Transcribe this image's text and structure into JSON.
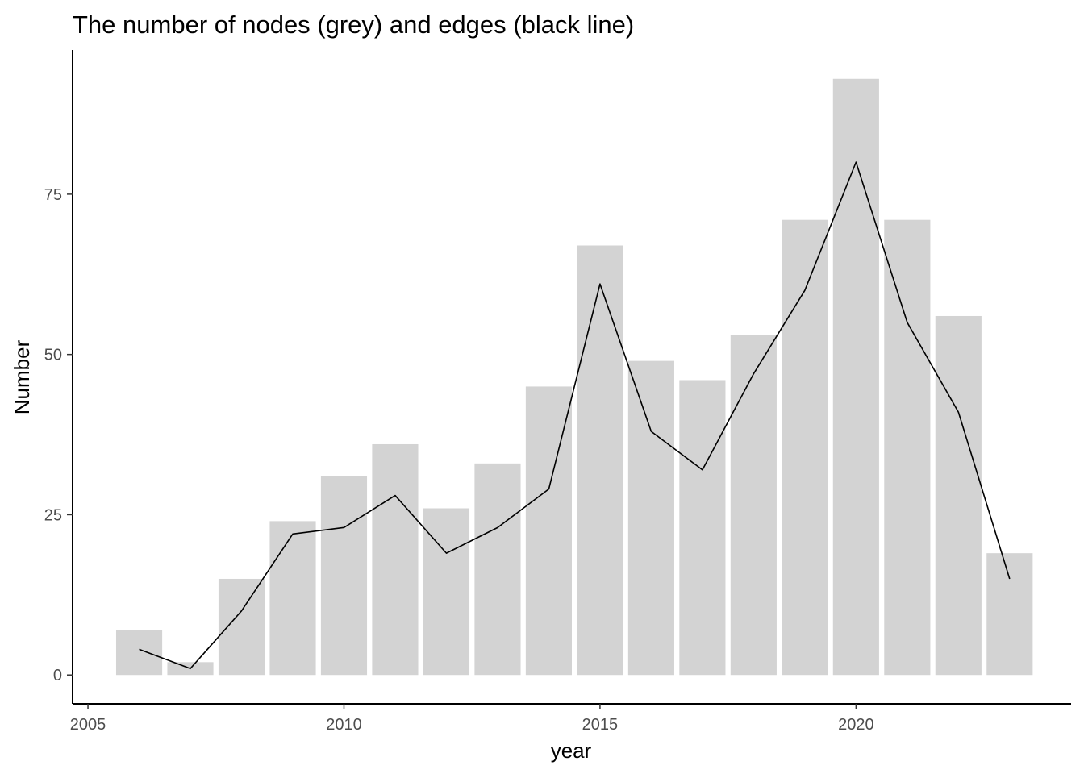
{
  "chart_data": {
    "type": "bar",
    "title": "The number of nodes (grey) and edges (black line)",
    "xlabel": "year",
    "ylabel": "Number",
    "xlim": [
      2004.7,
      2024.2
    ],
    "ylim": [
      -4.5,
      97.5
    ],
    "x_ticks": [
      2005,
      2010,
      2015,
      2020
    ],
    "y_ticks": [
      0,
      25,
      50,
      75
    ],
    "grid": false,
    "legend": "none",
    "bar_width": 0.9,
    "colors": {
      "bar": "#d3d3d3",
      "line": "#000000",
      "axis": "#000000",
      "tick_text": "#4d4d4d"
    },
    "series": [
      {
        "kind": "bar",
        "x": [
          2006,
          2007,
          2008,
          2009,
          2010,
          2011,
          2012,
          2013,
          2014,
          2015,
          2016,
          2017,
          2018,
          2019,
          2020,
          2021,
          2022,
          2023
        ],
        "values": [
          7,
          2,
          15,
          24,
          31,
          36,
          26,
          33,
          45,
          67,
          49,
          46,
          53,
          71,
          93,
          71,
          56,
          19
        ]
      },
      {
        "kind": "line",
        "x": [
          2006,
          2007,
          2008,
          2009,
          2010,
          2011,
          2012,
          2013,
          2014,
          2015,
          2016,
          2017,
          2018,
          2019,
          2020,
          2021,
          2022,
          2023
        ],
        "values": [
          4,
          1,
          10,
          22,
          23,
          28,
          19,
          23,
          29,
          61,
          38,
          32,
          47,
          60,
          80,
          55,
          41,
          15
        ]
      }
    ]
  }
}
